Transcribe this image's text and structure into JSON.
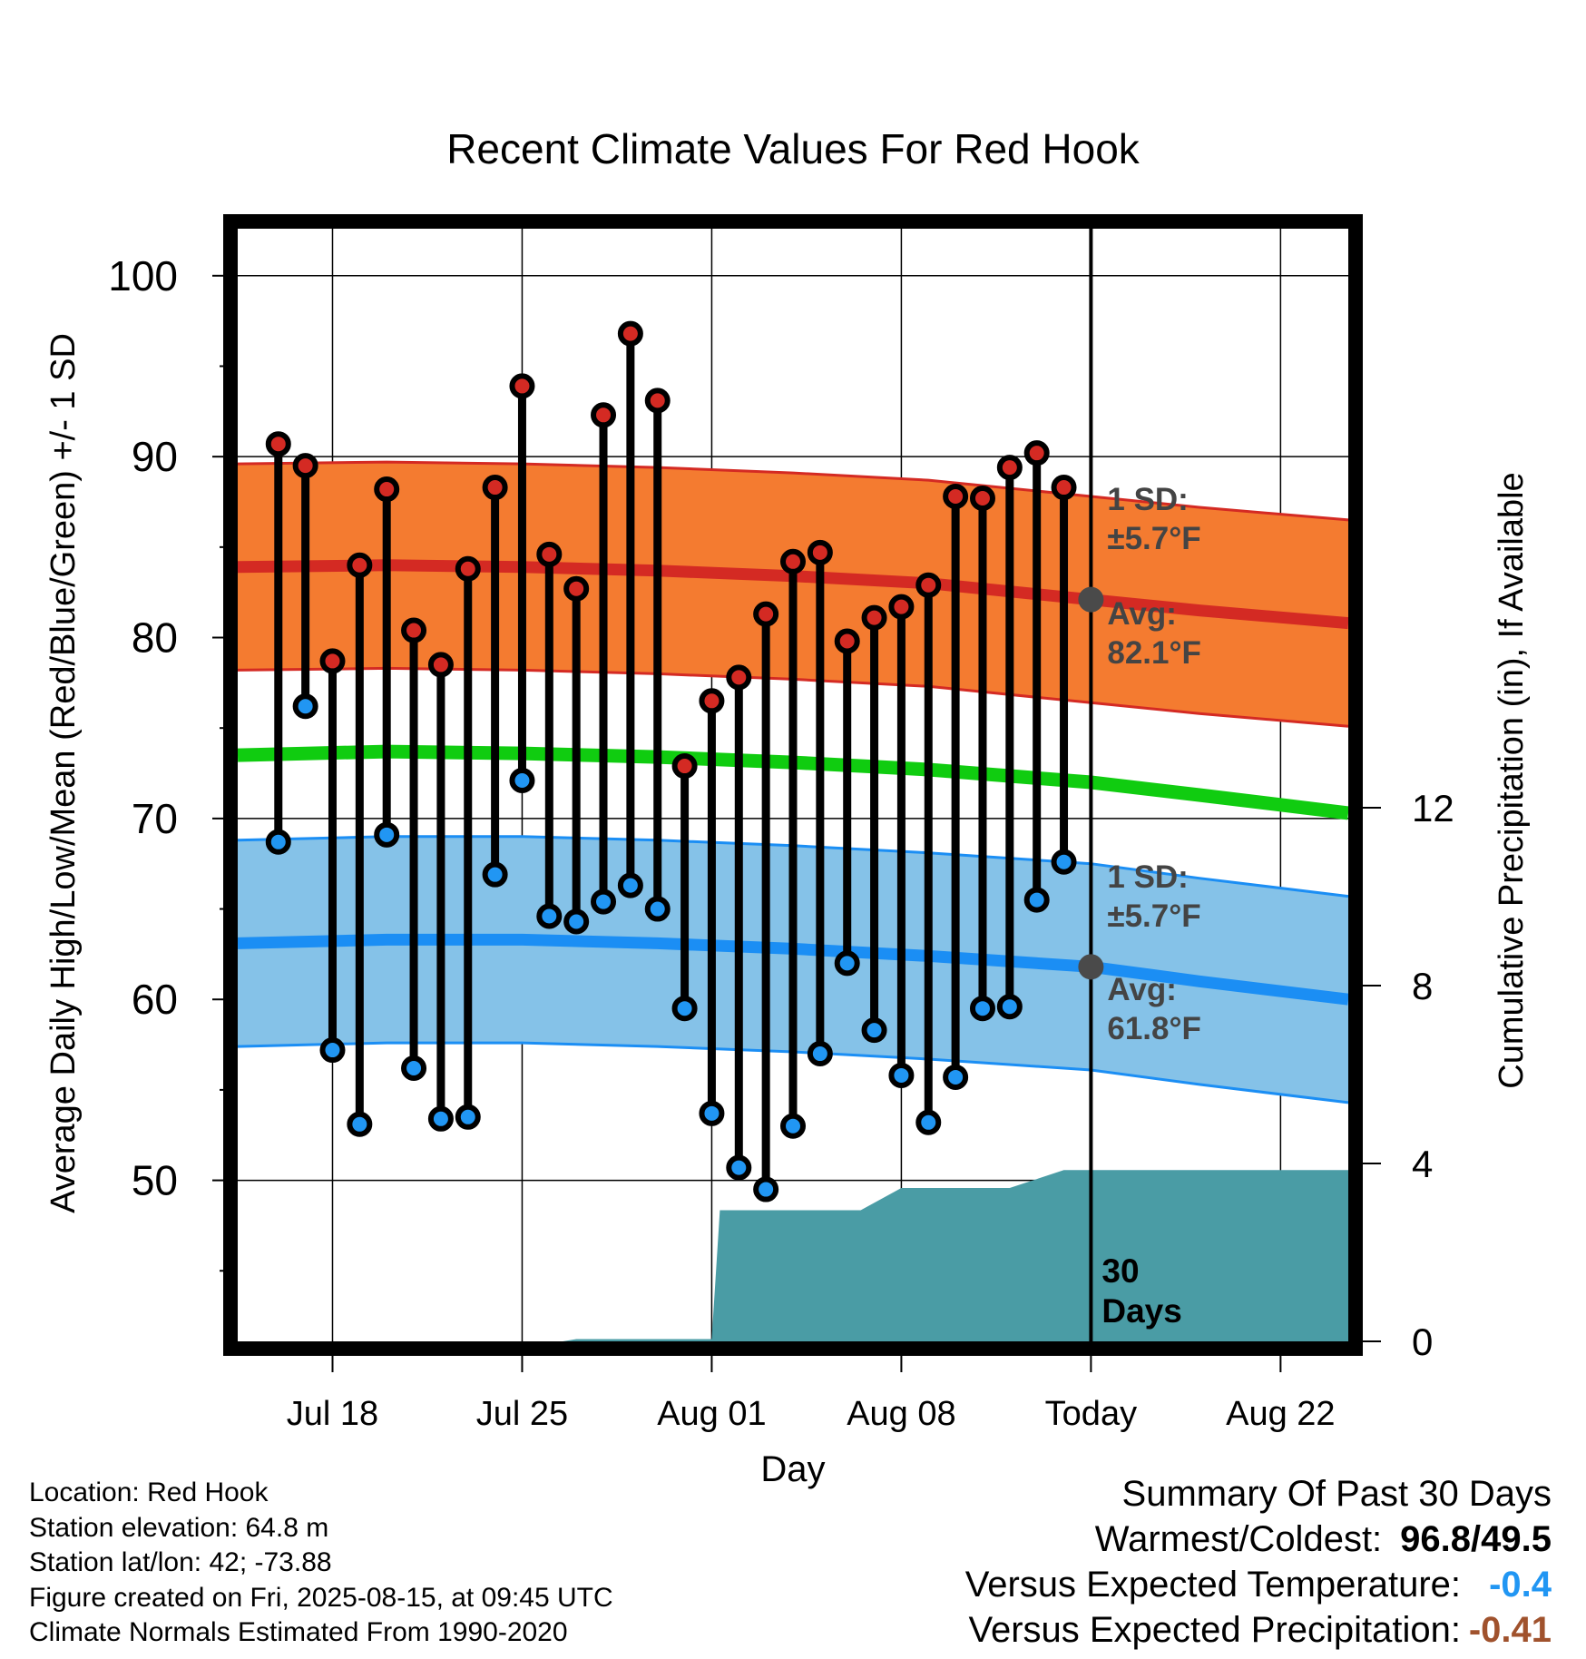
{
  "chart_data": {
    "type": "line",
    "title": "Recent Climate Values For Red Hook",
    "xlabel": "Day",
    "ylabel": "Average Daily High/Low/Mean (Red/Blue/Green) +/- 1 SD",
    "y2label": "Cumulative Precipitation (in), If Available",
    "ylim": [
      41,
      103
    ],
    "y2lim": [
      0,
      12
    ],
    "y_ticks": [
      "100",
      "90",
      "80",
      "70",
      "60",
      "50"
    ],
    "y2_ticks": [
      "12",
      "8",
      "4",
      "0"
    ],
    "x_ticks": [
      "Jul 18",
      "Jul 25",
      "Aug 01",
      "Aug 08",
      "Today",
      "Aug 22"
    ],
    "x_tick_days": [
      3,
      10,
      17,
      24,
      31,
      38
    ],
    "x_range_days": [
      -0.5,
      40.5
    ],
    "grid": true,
    "today_day": 31,
    "today_label": "30 Days",
    "colors": {
      "high_band": "#f47b30",
      "high_line": "#d42a23",
      "low_band": "#85c2e8",
      "low_line": "#1b8ef4",
      "mean_line": "#10cc10",
      "precip": "#4a9ca5",
      "high_dot": "#d42a23",
      "low_dot": "#2196f3",
      "marker": "#4a4a4a"
    },
    "high_normal": {
      "days": [
        -0.5,
        5,
        10,
        15,
        20,
        25,
        31,
        35,
        40.5
      ],
      "avg": [
        83.9,
        84.0,
        83.9,
        83.7,
        83.4,
        83.0,
        82.1,
        81.5,
        80.8
      ],
      "sd": 5.7
    },
    "low_normal": {
      "days": [
        -0.5,
        5,
        10,
        15,
        20,
        25,
        31,
        35,
        40.5
      ],
      "avg": [
        63.1,
        63.3,
        63.3,
        63.1,
        62.8,
        62.4,
        61.8,
        61.0,
        60.0
      ],
      "sd": 5.7
    },
    "mean_normal": {
      "days": [
        -0.5,
        5,
        10,
        15,
        20,
        25,
        31,
        35,
        40.5
      ],
      "values": [
        73.5,
        73.7,
        73.6,
        73.4,
        73.1,
        72.7,
        72.0,
        71.3,
        70.3
      ]
    },
    "annotations": {
      "high_sd": [
        "1 SD:",
        "±5.7°F"
      ],
      "high_avg": [
        "Avg:",
        "82.1°F"
      ],
      "low_sd": [
        "1 SD:",
        "±5.7°F"
      ],
      "low_avg": [
        "Avg:",
        "61.8°F"
      ]
    },
    "series": [
      {
        "name": "High",
        "days": [
          1,
          2,
          3,
          4,
          5,
          6,
          7,
          8,
          9,
          10,
          11,
          12,
          13,
          14,
          15,
          16,
          17,
          18,
          19,
          20,
          21,
          22,
          23,
          24,
          25,
          26,
          27,
          28,
          29,
          30
        ],
        "values": [
          90.7,
          89.5,
          78.7,
          84.0,
          88.2,
          80.4,
          78.5,
          83.8,
          88.3,
          93.9,
          84.6,
          82.7,
          92.3,
          96.8,
          93.1,
          72.9,
          76.5,
          77.8,
          81.3,
          84.2,
          84.7,
          79.8,
          81.1,
          81.7,
          82.9,
          87.8,
          87.7,
          89.4,
          90.2,
          88.3
        ]
      },
      {
        "name": "Low",
        "days": [
          1,
          2,
          3,
          4,
          5,
          6,
          7,
          8,
          9,
          10,
          11,
          12,
          13,
          14,
          15,
          16,
          17,
          18,
          19,
          20,
          21,
          22,
          23,
          24,
          25,
          26,
          27,
          28,
          29,
          30
        ],
        "values": [
          68.7,
          76.2,
          57.2,
          53.1,
          69.1,
          56.2,
          53.4,
          53.5,
          66.9,
          72.1,
          64.6,
          64.3,
          65.4,
          66.3,
          65.0,
          59.5,
          53.7,
          50.7,
          49.5,
          53.0,
          57.0,
          62.0,
          58.3,
          55.8,
          53.2,
          55.7,
          59.5,
          59.6,
          65.5,
          67.6
        ]
      },
      {
        "name": "Cumulative Precipitation",
        "days": [
          11.5,
          12.0,
          14.5,
          15.0,
          16.0,
          17.0,
          17.3,
          20.0,
          22.0,
          22.5,
          24.0,
          27.0,
          28.0,
          30.0,
          31.0,
          40.5
        ],
        "values": [
          0,
          0.05,
          0.05,
          0.05,
          0.05,
          0.05,
          2.95,
          2.95,
          2.95,
          2.95,
          3.45,
          3.45,
          3.45,
          3.85,
          3.85,
          3.85
        ]
      }
    ]
  },
  "info": {
    "location": "Location: Red Hook",
    "elevation": "Station elevation: 64.8 m",
    "latlon": "Station lat/lon: 42; -73.88",
    "created": "Figure created on Fri, 2025-08-15, at 09:45 UTC",
    "normals": "Climate Normals Estimated From 1990-2020"
  },
  "summary": {
    "title": "Summary Of Past 30 Days",
    "warmest_label": "Warmest/Coldest:",
    "warmest_value": "96.8/49.5",
    "temp_label": "Versus Expected Temperature:",
    "temp_value": "-0.4",
    "temp_color": "#2196f3",
    "precip_label": "Versus Expected Precipitation:",
    "precip_value": "-0.41",
    "precip_color": "#a0522d"
  }
}
